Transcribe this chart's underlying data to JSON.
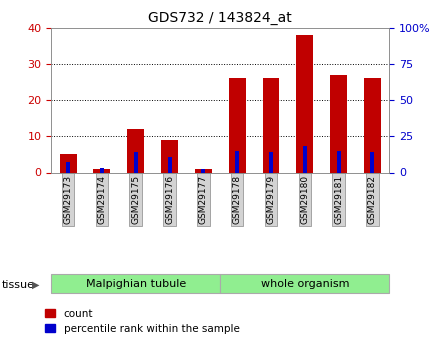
{
  "title": "GDS732 / 143824_at",
  "samples": [
    "GSM29173",
    "GSM29174",
    "GSM29175",
    "GSM29176",
    "GSM29177",
    "GSM29178",
    "GSM29179",
    "GSM29180",
    "GSM29181",
    "GSM29182"
  ],
  "count": [
    5,
    1,
    12,
    9,
    1,
    26,
    26,
    38,
    27,
    26
  ],
  "percentile": [
    7,
    3,
    14,
    10.5,
    2.5,
    14.5,
    14,
    18,
    14.5,
    14
  ],
  "count_color": "#c00000",
  "percentile_color": "#0000cc",
  "ylim_left": [
    0,
    40
  ],
  "ylim_right": [
    0,
    100
  ],
  "yticks_left": [
    0,
    10,
    20,
    30,
    40
  ],
  "yticks_right": [
    0,
    25,
    50,
    75,
    100
  ],
  "ytick_labels_right": [
    "0",
    "25",
    "50",
    "75",
    "100%"
  ],
  "tissue_groups": [
    {
      "label": "Malpighian tubule",
      "start": 0,
      "end": 5
    },
    {
      "label": "whole organism",
      "start": 5,
      "end": 10
    }
  ],
  "tissue_label": "tissue",
  "legend_count": "count",
  "legend_percentile": "percentile rank within the sample",
  "count_bar_width": 0.5,
  "percentile_bar_width": 0.12,
  "background_plot": "#ffffff",
  "tick_label_bg": "#d3d3d3",
  "count_color_label": "#cc0000",
  "ylabel_right_color": "#0000cc",
  "tissue_green": "#90ee90",
  "tissue_border": "#aaaaaa"
}
